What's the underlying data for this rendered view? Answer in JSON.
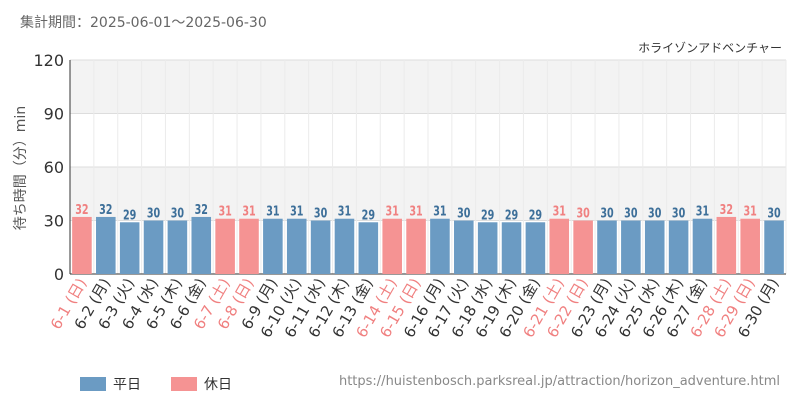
{
  "header": {
    "period": "集計期間：2025-06-01～2025-06-30",
    "attraction": "ホライゾンアドベンチャー"
  },
  "legend": [
    {
      "label": "平日",
      "color": "#6b9bc3"
    },
    {
      "label": "休日",
      "color": "#f59393"
    }
  ],
  "footer": {
    "url": "https://huistenbosch.parksreal.jp/attraction/horizon_adventure.html"
  },
  "chart_data": {
    "type": "bar",
    "ylabel": "待ち時間（分）min",
    "ylim": [
      0,
      120
    ],
    "yticks": [
      0,
      30,
      60,
      90,
      120
    ],
    "grid": true,
    "legend_position": "bottom-left",
    "colors": {
      "weekday": "#6b9bc3",
      "holiday": "#f59393",
      "weekday_label": "#3d6f99",
      "holiday_label": "#f08080"
    },
    "categories": [
      "6-1 (日)",
      "6-2 (月)",
      "6-3 (火)",
      "6-4 (水)",
      "6-5 (木)",
      "6-6 (金)",
      "6-7 (土)",
      "6-8 (日)",
      "6-9 (月)",
      "6-10 (火)",
      "6-11 (水)",
      "6-12 (木)",
      "6-13 (金)",
      "6-14 (土)",
      "6-15 (日)",
      "6-16 (月)",
      "6-17 (火)",
      "6-18 (水)",
      "6-19 (木)",
      "6-20 (金)",
      "6-21 (土)",
      "6-22 (日)",
      "6-23 (月)",
      "6-24 (火)",
      "6-25 (水)",
      "6-26 (木)",
      "6-27 (金)",
      "6-28 (土)",
      "6-29 (日)",
      "6-30 (月)"
    ],
    "values": [
      32,
      32,
      29,
      30,
      30,
      32,
      31,
      31,
      31,
      31,
      30,
      31,
      29,
      31,
      31,
      31,
      30,
      29,
      29,
      29,
      31,
      30,
      30,
      30,
      30,
      30,
      31,
      32,
      31,
      30
    ],
    "holiday": [
      true,
      false,
      false,
      false,
      false,
      false,
      true,
      true,
      false,
      false,
      false,
      false,
      false,
      true,
      true,
      false,
      false,
      false,
      false,
      false,
      true,
      true,
      false,
      false,
      false,
      false,
      false,
      true,
      true,
      false
    ]
  }
}
